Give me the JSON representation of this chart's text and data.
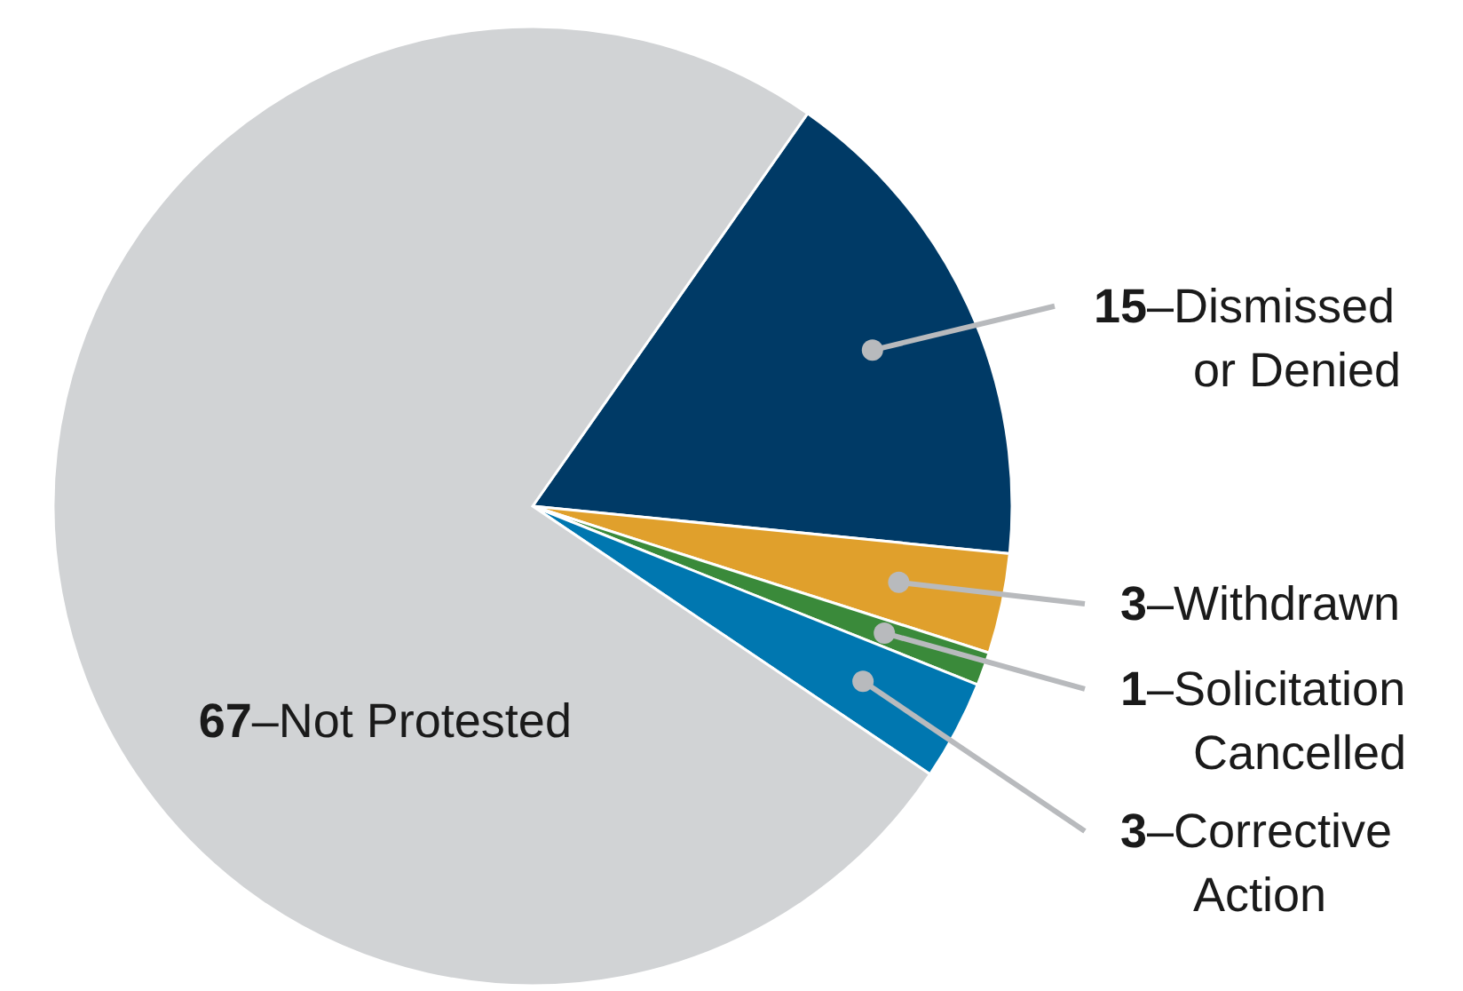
{
  "chart_data": {
    "type": "pie",
    "categories": [
      "–Dismissed or Denied",
      "–Withdrawn",
      "–Solicitation Cancelled",
      "–Corrective Action",
      "–Not Protested"
    ],
    "values": [
      15,
      3,
      1,
      3,
      67
    ],
    "colors": [
      "#003a66",
      "#e0a02c",
      "#3a8a3a",
      "#0077b0",
      "#d1d3d5"
    ],
    "data_labels": true
  }
}
